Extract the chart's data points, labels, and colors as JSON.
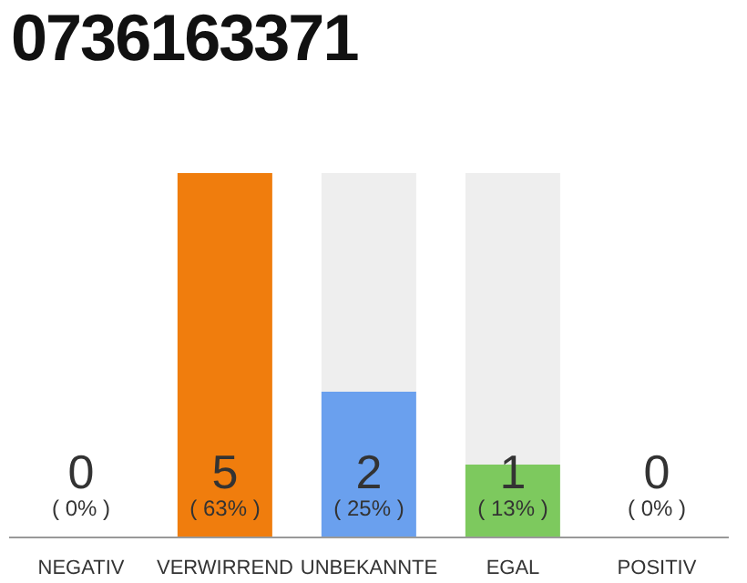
{
  "chart_data": {
    "type": "bar",
    "title": "0736163371",
    "categories": [
      "NEGATIV",
      "VERWIRREND",
      "UNBEKANNTE",
      "EGAL",
      "POSITIV"
    ],
    "values": [
      0,
      5,
      2,
      1,
      0
    ],
    "colors": [
      "#eeeeee",
      "#f07d0d",
      "#6aa0ee",
      "#7dc95e",
      "#eeeeee"
    ],
    "data_labels": true,
    "annotations": [
      "( 0% )",
      "( 63% )",
      "( 25% )",
      "( 13% )",
      "( 0% )"
    ]
  }
}
